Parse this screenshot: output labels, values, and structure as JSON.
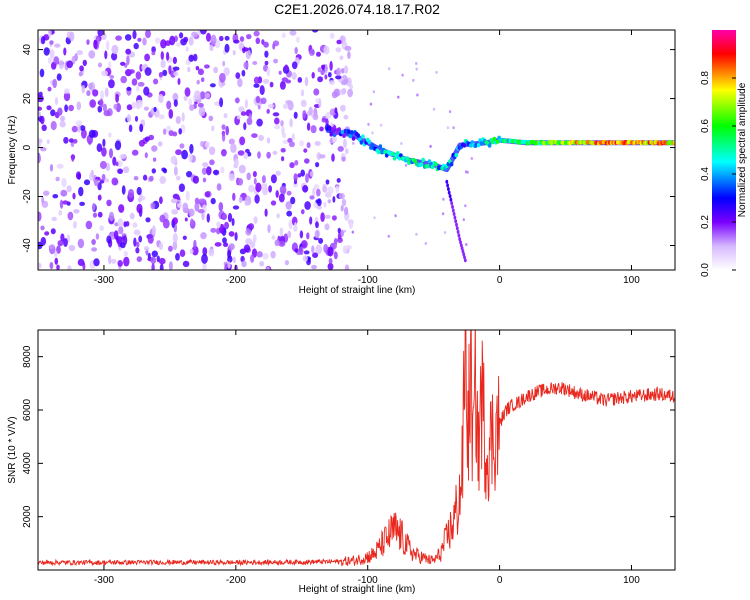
{
  "figure_title": "C2E1.2026.074.18.17.R02",
  "chart_data": [
    {
      "type": "heatmap",
      "title": "C2E1.2026.074.18.17.R02",
      "xlabel": "Height of straight line (km)",
      "ylabel": "Frequency (Hz)",
      "xlim": [
        -350,
        133
      ],
      "ylim": [
        -50,
        48
      ],
      "xticks": [
        -300,
        -200,
        -100,
        0,
        100
      ],
      "yticks": [
        -40,
        -20,
        0,
        20,
        40
      ],
      "xtick_labels": [
        "-300",
        "-200",
        "-100",
        "0",
        "100"
      ],
      "ytick_labels": [
        "-40",
        "-20",
        "0",
        "20",
        "40"
      ],
      "colorbar": {
        "label": "Normalized spectral amplitude",
        "range": [
          0,
          1
        ],
        "ticks": [
          0.0,
          0.2,
          0.4,
          0.6,
          0.8
        ],
        "tick_labels": [
          "0.0",
          "0.2",
          "0.4",
          "0.6",
          "0.8"
        ],
        "colormap": "white-purple-blue-cyan-green-yellow-red-magenta"
      },
      "features": {
        "noise_region_x": [
          -350,
          -120
        ],
        "noise_peak_amplitude": 0.15,
        "ridge": [
          {
            "x": -130,
            "f": 7,
            "a": 0.25
          },
          {
            "x": -110,
            "f": 5,
            "a": 0.35
          },
          {
            "x": -90,
            "f": -1,
            "a": 0.4
          },
          {
            "x": -70,
            "f": -5,
            "a": 0.45
          },
          {
            "x": -50,
            "f": -7,
            "a": 0.45
          },
          {
            "x": -40,
            "f": -9,
            "a": 0.4
          },
          {
            "x": -30,
            "f": 1,
            "a": 0.35
          },
          {
            "x": -10,
            "f": 2,
            "a": 0.5
          },
          {
            "x": 0,
            "f": 3,
            "a": 0.5
          },
          {
            "x": 20,
            "f": 2,
            "a": 0.5
          },
          {
            "x": 50,
            "f": 2,
            "a": 0.7
          },
          {
            "x": 80,
            "f": 2,
            "a": 0.85
          },
          {
            "x": 100,
            "f": 2,
            "a": 0.8
          },
          {
            "x": 133,
            "f": 2,
            "a": 0.75
          }
        ],
        "tail": [
          {
            "x": -40,
            "f": -14
          },
          {
            "x": -30,
            "f": -38
          },
          {
            "x": -26,
            "f": -46
          }
        ]
      }
    },
    {
      "type": "line",
      "title": "",
      "xlabel": "Height of straight line (km)",
      "ylabel": "SNR (10 * V/V)",
      "xlim": [
        -350,
        133
      ],
      "ylim": [
        0,
        9000
      ],
      "xticks": [
        -300,
        -200,
        -100,
        0,
        100
      ],
      "yticks": [
        2000,
        4000,
        6000,
        8000
      ],
      "xtick_labels": [
        "-300",
        "-200",
        "-100",
        "0",
        "100"
      ],
      "ytick_labels": [
        "2000",
        "4000",
        "6000",
        "8000"
      ],
      "series": [
        {
          "name": "SNR",
          "color": "#e8281e",
          "x": [
            -350,
            -300,
            -250,
            -200,
            -150,
            -120,
            -110,
            -100,
            -95,
            -90,
            -85,
            -80,
            -75,
            -70,
            -65,
            -60,
            -55,
            -50,
            -45,
            -40,
            -35,
            -30,
            -28,
            -26,
            -24,
            -22,
            -20,
            -18,
            -16,
            -14,
            -10,
            -5,
            0,
            5,
            10,
            15,
            20,
            25,
            30,
            35,
            40,
            45,
            50,
            55,
            60,
            70,
            80,
            90,
            100,
            110,
            120,
            133
          ],
          "y": [
            280,
            280,
            290,
            280,
            300,
            320,
            350,
            500,
            600,
            900,
            1200,
            1500,
            1300,
            900,
            600,
            500,
            400,
            350,
            600,
            1200,
            1800,
            2800,
            4000,
            8900,
            5000,
            7500,
            4500,
            7200,
            4200,
            6800,
            4400,
            5000,
            5500,
            6000,
            6200,
            6300,
            6500,
            6600,
            6700,
            6750,
            6800,
            6850,
            6800,
            6700,
            6600,
            6500,
            6350,
            6450,
            6500,
            6550,
            6600,
            6500
          ]
        }
      ]
    }
  ]
}
